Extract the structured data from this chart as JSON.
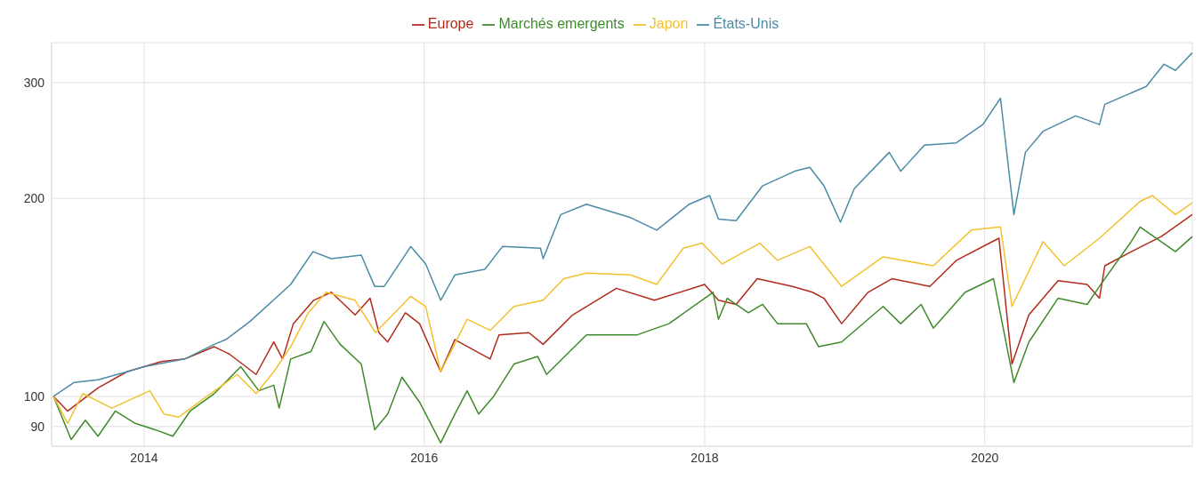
{
  "chart_data": {
    "type": "line",
    "log": true,
    "grid": true,
    "legend": "top",
    "marker": "none",
    "line_style": "solid",
    "xlim": [
      "2013-05-05",
      "2021-06-25"
    ],
    "xticks": [
      {
        "value": "2014-01-01",
        "label": "2014"
      },
      {
        "value": "2016-01-01",
        "label": "2016"
      },
      {
        "value": "2018-01-01",
        "label": "2018"
      },
      {
        "value": "2020-01-01",
        "label": "2020"
      }
    ],
    "ylim": [
      84,
      345
    ],
    "yticks": [
      90,
      100,
      200,
      300
    ],
    "series": [
      {
        "name": "Europe",
        "color": "#b22a1a",
        "x": [
          "2013-05-10",
          "2013-06-16",
          "2013-09-03",
          "2013-11-17",
          "2014-02-15",
          "2014-04-17",
          "2014-07-03",
          "2014-08-11",
          "2014-10-20",
          "2014-12-05",
          "2014-12-28",
          "2015-01-25",
          "2015-03-19",
          "2015-05-04",
          "2015-07-05",
          "2015-08-13",
          "2015-09-05",
          "2015-09-28",
          "2015-11-13",
          "2015-12-20",
          "2016-02-13",
          "2016-03-21",
          "2016-06-21",
          "2016-07-14",
          "2016-09-30",
          "2016-11-06",
          "2017-01-22",
          "2017-05-16",
          "2017-08-23",
          "2018-01-01",
          "2018-02-06",
          "2018-03-24",
          "2018-05-18",
          "2018-08-18",
          "2018-10-09",
          "2018-11-08",
          "2018-12-24",
          "2019-03-03",
          "2019-05-04",
          "2019-08-11",
          "2019-10-19",
          "2020-02-07",
          "2020-03-12",
          "2020-04-25",
          "2020-07-10",
          "2020-09-24",
          "2020-10-26",
          "2020-11-09",
          "2021-01-17",
          "2021-04-05",
          "2021-06-25"
        ],
        "values": [
          100,
          95,
          103,
          109,
          113,
          114,
          119,
          116,
          108,
          121,
          114,
          129,
          140,
          144,
          133,
          141,
          125,
          121,
          134,
          129,
          109,
          122,
          114,
          124,
          125,
          120,
          133,
          146,
          140,
          148,
          140,
          138,
          151,
          147,
          144,
          141,
          129,
          144,
          151,
          147,
          161,
          174,
          112,
          133,
          150,
          148,
          141,
          158,
          166,
          175,
          189
        ]
      },
      {
        "name": "Marchés emergents",
        "color": "#3f8a2c",
        "x": [
          "2013-05-10",
          "2013-06-25",
          "2013-08-01",
          "2013-09-03",
          "2013-10-18",
          "2013-12-09",
          "2014-01-30",
          "2014-03-17",
          "2014-05-01",
          "2014-07-03",
          "2014-09-10",
          "2014-10-27",
          "2014-12-05",
          "2014-12-19",
          "2015-01-18",
          "2015-03-12",
          "2015-04-15",
          "2015-05-27",
          "2015-07-21",
          "2015-08-25",
          "2015-09-28",
          "2015-11-04",
          "2015-12-20",
          "2016-02-13",
          "2016-03-21",
          "2016-04-22",
          "2016-05-22",
          "2016-06-30",
          "2016-08-22",
          "2016-10-23",
          "2016-11-15",
          "2017-02-27",
          "2017-07-08",
          "2017-09-30",
          "2018-01-23",
          "2018-02-06",
          "2018-03-01",
          "2018-04-25",
          "2018-06-01",
          "2018-07-10",
          "2018-09-23",
          "2018-10-25",
          "2018-12-24",
          "2019-04-11",
          "2019-05-27",
          "2019-07-19",
          "2019-08-20",
          "2019-11-11",
          "2020-01-24",
          "2020-03-17",
          "2020-04-25",
          "2020-07-10",
          "2020-09-24",
          "2020-10-26",
          "2021-01-17",
          "2021-02-09",
          "2021-05-12",
          "2021-06-25"
        ],
        "values": [
          100,
          86,
          92,
          87,
          95,
          91,
          89,
          87,
          95,
          101,
          111,
          102,
          104,
          96,
          114,
          117,
          130,
          120,
          112,
          89,
          94,
          107,
          98,
          85,
          94,
          102,
          94,
          100,
          112,
          115,
          108,
          124,
          124,
          129,
          144,
          131,
          141,
          134,
          138,
          129,
          129,
          119,
          121,
          137,
          129,
          138,
          127,
          144,
          151,
          105,
          121,
          141,
          138,
          147,
          172,
          181,
          166,
          175
        ]
      },
      {
        "name": "Japon",
        "color": "#f2c12e",
        "x": [
          "2013-05-10",
          "2013-06-16",
          "2013-07-25",
          "2013-10-09",
          "2014-01-16",
          "2014-02-22",
          "2014-04-01",
          "2014-05-24",
          "2014-09-01",
          "2014-10-20",
          "2014-12-05",
          "2015-01-18",
          "2015-03-05",
          "2015-04-20",
          "2015-07-05",
          "2015-08-27",
          "2015-11-27",
          "2016-01-05",
          "2016-02-13",
          "2016-04-22",
          "2016-06-21",
          "2016-08-22",
          "2016-11-06",
          "2016-12-30",
          "2017-02-27",
          "2017-06-22",
          "2017-08-29",
          "2017-11-06",
          "2017-12-25",
          "2018-02-16",
          "2018-05-25",
          "2018-07-10",
          "2018-10-02",
          "2018-12-24",
          "2019-04-11",
          "2019-08-20",
          "2019-11-27",
          "2020-02-11",
          "2020-03-12",
          "2020-06-01",
          "2020-07-26",
          "2020-10-26",
          "2021-02-09",
          "2021-03-13",
          "2021-05-12",
          "2021-06-25"
        ],
        "values": [
          100,
          91,
          101,
          96,
          102,
          94,
          93,
          98,
          108,
          101,
          109,
          119,
          134,
          144,
          140,
          125,
          142,
          137,
          109,
          131,
          126,
          137,
          140,
          151,
          154,
          153,
          148,
          168,
          171,
          159,
          171,
          161,
          169,
          147,
          163,
          158,
          179,
          181,
          137,
          172,
          158,
          174,
          198,
          202,
          189,
          197
        ]
      },
      {
        "name": "États-Unis",
        "color": "#4a8ba5",
        "x": [
          "2013-05-10",
          "2013-07-02",
          "2013-09-03",
          "2013-11-17",
          "2014-01-01",
          "2014-04-17",
          "2014-07-03",
          "2014-08-02",
          "2014-10-04",
          "2015-01-18",
          "2015-03-17",
          "2015-05-04",
          "2015-07-21",
          "2015-08-25",
          "2015-09-19",
          "2015-11-27",
          "2016-01-05",
          "2016-02-13",
          "2016-03-21",
          "2016-06-07",
          "2016-07-23",
          "2016-10-30",
          "2016-11-06",
          "2016-12-22",
          "2017-02-27",
          "2017-06-22",
          "2017-08-29",
          "2017-11-22",
          "2018-01-14",
          "2018-02-06",
          "2018-03-24",
          "2018-06-01",
          "2018-08-24",
          "2018-10-02",
          "2018-11-08",
          "2018-12-21",
          "2019-01-26",
          "2019-04-27",
          "2019-05-27",
          "2019-07-28",
          "2019-10-19",
          "2019-12-27",
          "2020-02-11",
          "2020-03-17",
          "2020-04-16",
          "2020-06-01",
          "2020-08-25",
          "2020-10-26",
          "2020-11-09",
          "2021-02-25",
          "2021-04-12",
          "2021-05-12",
          "2021-06-25"
        ],
        "values": [
          100,
          105,
          106,
          109,
          111,
          114,
          120,
          122,
          130,
          148,
          166,
          162,
          164,
          147,
          147,
          169,
          159,
          140,
          153,
          156,
          169,
          168,
          162,
          189,
          196,
          187,
          179,
          196,
          202,
          186,
          185,
          209,
          220,
          223,
          209,
          184,
          207,
          235,
          220,
          241,
          243,
          259,
          284,
          189,
          235,
          253,
          267,
          259,
          278,
          296,
          320,
          313,
          333
        ]
      }
    ]
  }
}
